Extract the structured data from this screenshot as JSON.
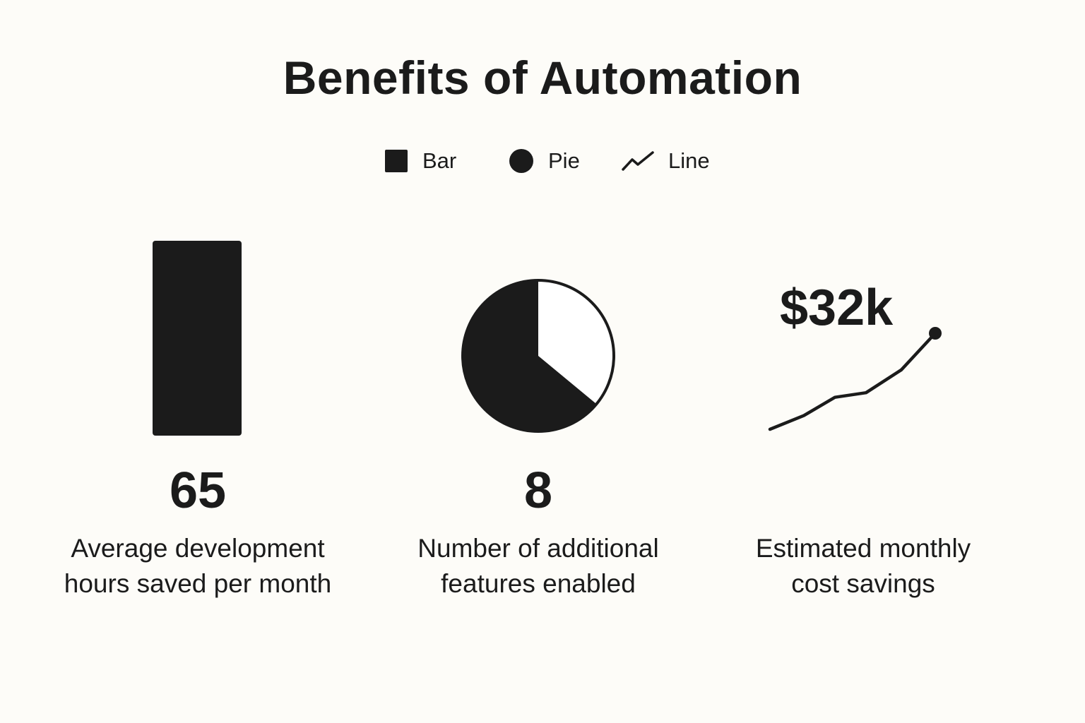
{
  "chart_data": {
    "title": "Benefits of Automation",
    "legend": {
      "placement": "top-center",
      "entries": [
        {
          "label": "Bar",
          "marker": "square"
        },
        {
          "label": "Pie",
          "marker": "circle"
        },
        {
          "label": "Line",
          "marker": "line"
        }
      ]
    },
    "panels": [
      {
        "type": "bar",
        "value": 65,
        "value_label": "65",
        "description": [
          "Average development",
          "hours saved per month"
        ]
      },
      {
        "type": "pie",
        "value": 8,
        "value_label": "8",
        "slices": [
          {
            "fraction": 0.64,
            "color": "#1b1b1b"
          },
          {
            "fraction": 0.36,
            "color": "#ffffff"
          }
        ],
        "description": [
          "Number of additional",
          "features enabled"
        ]
      },
      {
        "type": "line",
        "value": 32000,
        "value_label": "$32k",
        "values": [
          0,
          6,
          14,
          16,
          26,
          42
        ],
        "grid": false,
        "description": [
          "Estimated monthly",
          "cost savings"
        ]
      }
    ]
  },
  "colors": {
    "ink": "#1b1b1b",
    "background": "#fdfcf8"
  }
}
